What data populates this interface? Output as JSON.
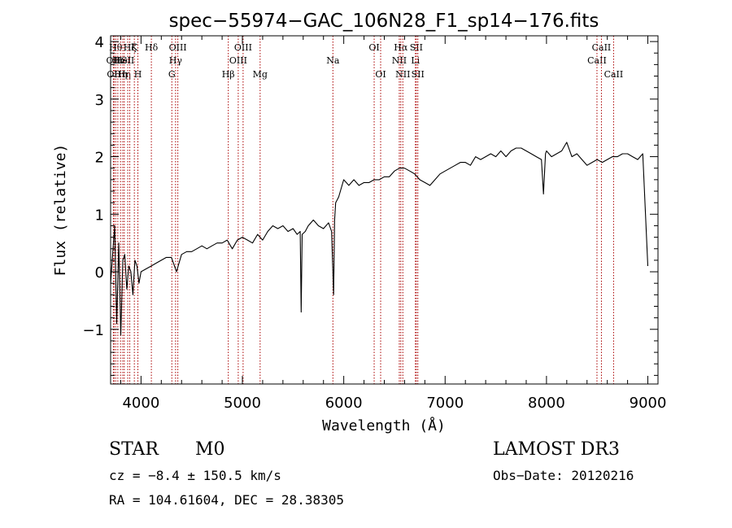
{
  "colors": {
    "line": "#000000",
    "marker": "#aa0000",
    "background": "#ffffff"
  },
  "chart_data": {
    "type": "line",
    "title": "spec−55974−GAC_106N28_F1_sp14−176.fits",
    "xlabel": "Wavelength (Å)",
    "ylabel": "Flux (relative)",
    "xlim": [
      3700,
      9100
    ],
    "ylim": [
      -1.95,
      4.1
    ],
    "xticks": [
      {
        "value": 4000,
        "label": "4000"
      },
      {
        "value": 5000,
        "label": "5000"
      },
      {
        "value": 6000,
        "label": "6000"
      },
      {
        "value": 7000,
        "label": "7000"
      },
      {
        "value": 8000,
        "label": "8000"
      },
      {
        "value": 9000,
        "label": "9000"
      }
    ],
    "yticks": [
      {
        "value": -1,
        "label": "−1"
      },
      {
        "value": 0,
        "label": "0"
      },
      {
        "value": 1,
        "label": "1"
      },
      {
        "value": 2,
        "label": "2"
      },
      {
        "value": 3,
        "label": "3"
      },
      {
        "value": 4,
        "label": "4"
      }
    ],
    "series": [
      {
        "name": "spectrum",
        "x": [
          3700,
          3720,
          3740,
          3760,
          3780,
          3800,
          3820,
          3840,
          3860,
          3880,
          3900,
          3920,
          3940,
          3960,
          3980,
          4000,
          4050,
          4100,
          4150,
          4200,
          4250,
          4300,
          4350,
          4400,
          4450,
          4500,
          4550,
          4600,
          4650,
          4700,
          4750,
          4800,
          4850,
          4900,
          4950,
          5000,
          5050,
          5100,
          5150,
          5200,
          5250,
          5300,
          5350,
          5400,
          5450,
          5500,
          5540,
          5570,
          5580,
          5590,
          5620,
          5650,
          5700,
          5750,
          5800,
          5850,
          5880,
          5900,
          5910,
          5920,
          5950,
          6000,
          6050,
          6100,
          6150,
          6200,
          6250,
          6300,
          6350,
          6400,
          6450,
          6500,
          6550,
          6600,
          6650,
          6700,
          6750,
          6800,
          6850,
          6900,
          6950,
          7000,
          7050,
          7100,
          7150,
          7200,
          7250,
          7300,
          7350,
          7400,
          7450,
          7500,
          7550,
          7600,
          7650,
          7700,
          7750,
          7800,
          7850,
          7900,
          7950,
          7970,
          7990,
          8000,
          8050,
          8100,
          8150,
          8200,
          8250,
          8300,
          8350,
          8400,
          8450,
          8500,
          8550,
          8600,
          8650,
          8700,
          8750,
          8800,
          8850,
          8900,
          8950,
          9000
        ],
        "y": [
          -0.2,
          0.3,
          0.8,
          -0.9,
          0.5,
          -1.1,
          0.2,
          0.3,
          -0.3,
          0.1,
          0.0,
          -0.4,
          0.2,
          0.1,
          -0.2,
          0.0,
          0.05,
          0.1,
          0.15,
          0.2,
          0.25,
          0.25,
          0.0,
          0.3,
          0.35,
          0.35,
          0.4,
          0.45,
          0.4,
          0.45,
          0.5,
          0.5,
          0.55,
          0.4,
          0.55,
          0.6,
          0.55,
          0.5,
          0.65,
          0.55,
          0.7,
          0.8,
          0.75,
          0.8,
          0.7,
          0.75,
          0.65,
          0.7,
          -0.7,
          0.65,
          0.7,
          0.8,
          0.9,
          0.8,
          0.75,
          0.85,
          0.7,
          -0.4,
          0.9,
          1.2,
          1.3,
          1.6,
          1.5,
          1.6,
          1.5,
          1.55,
          1.55,
          1.6,
          1.6,
          1.65,
          1.65,
          1.75,
          1.8,
          1.8,
          1.75,
          1.7,
          1.6,
          1.55,
          1.5,
          1.6,
          1.7,
          1.75,
          1.8,
          1.85,
          1.9,
          1.9,
          1.85,
          2.0,
          1.95,
          2.0,
          2.05,
          2.0,
          2.1,
          2.0,
          2.1,
          2.15,
          2.15,
          2.1,
          2.05,
          2.0,
          1.95,
          1.35,
          2.05,
          2.1,
          2.0,
          2.05,
          2.1,
          2.25,
          2.0,
          2.05,
          1.95,
          1.85,
          1.9,
          1.95,
          1.9,
          1.95,
          2.0,
          2.0,
          2.05,
          2.05,
          2.0,
          1.95,
          2.05,
          0.1
        ]
      }
    ],
    "emission_markers": [
      {
        "wavelength": 3727,
        "label": "OII",
        "row": 2
      },
      {
        "wavelength": 3734,
        "label": "OII",
        "row": 3
      },
      {
        "wavelength": 3750,
        "label": "Hθ",
        "row": 1
      },
      {
        "wavelength": 3771,
        "label": "Hι",
        "row": 2
      },
      {
        "wavelength": 3798,
        "label": "Hη",
        "row": 3
      },
      {
        "wavelength": 3820,
        "label": "HeI",
        "row": 2
      },
      {
        "wavelength": 3835,
        "label": "Hη",
        "row": 3
      },
      {
        "wavelength": 3869,
        "label": "SII",
        "row": 2
      },
      {
        "wavelength": 3889,
        "label": "Hζ",
        "row": 1
      },
      {
        "wavelength": 3934,
        "label": "K",
        "row": 1
      },
      {
        "wavelength": 3969,
        "label": "H",
        "row": 3
      },
      {
        "wavelength": 4102,
        "label": "Hδ",
        "row": 1
      },
      {
        "wavelength": 4304,
        "label": "G",
        "row": 3
      },
      {
        "wavelength": 4341,
        "label": "Hγ",
        "row": 2
      },
      {
        "wavelength": 4363,
        "label": "OIII",
        "row": 1
      },
      {
        "wavelength": 4861,
        "label": "Hβ",
        "row": 3
      },
      {
        "wavelength": 4959,
        "label": "OIII",
        "row": 2
      },
      {
        "wavelength": 5007,
        "label": "OIII",
        "row": 1
      },
      {
        "wavelength": 5175,
        "label": "Mg",
        "row": 3
      },
      {
        "wavelength": 5893,
        "label": "Na",
        "row": 2
      },
      {
        "wavelength": 6300,
        "label": "OI",
        "row": 1
      },
      {
        "wavelength": 6364,
        "label": "OI",
        "row": 3
      },
      {
        "wavelength": 6548,
        "label": "NII",
        "row": 2
      },
      {
        "wavelength": 6563,
        "label": "Hα",
        "row": 1
      },
      {
        "wavelength": 6583,
        "label": "NII",
        "row": 3
      },
      {
        "wavelength": 6707,
        "label": "Li",
        "row": 2
      },
      {
        "wavelength": 6716,
        "label": "SII",
        "row": 1
      },
      {
        "wavelength": 6731,
        "label": "SII",
        "row": 3
      },
      {
        "wavelength": 8498,
        "label": "CaII",
        "row": 2
      },
      {
        "wavelength": 8542,
        "label": "CaII",
        "row": 1
      },
      {
        "wavelength": 8662,
        "label": "CaII",
        "row": 3
      }
    ]
  },
  "info": {
    "class": "STAR",
    "subclass": "M0",
    "survey": "LAMOST DR3",
    "cz": "cz = −8.4 ± 150.5 km/s",
    "obs_date": "Obs−Date: 20120216",
    "coords": "RA = 104.61604, DEC =  28.38305"
  }
}
